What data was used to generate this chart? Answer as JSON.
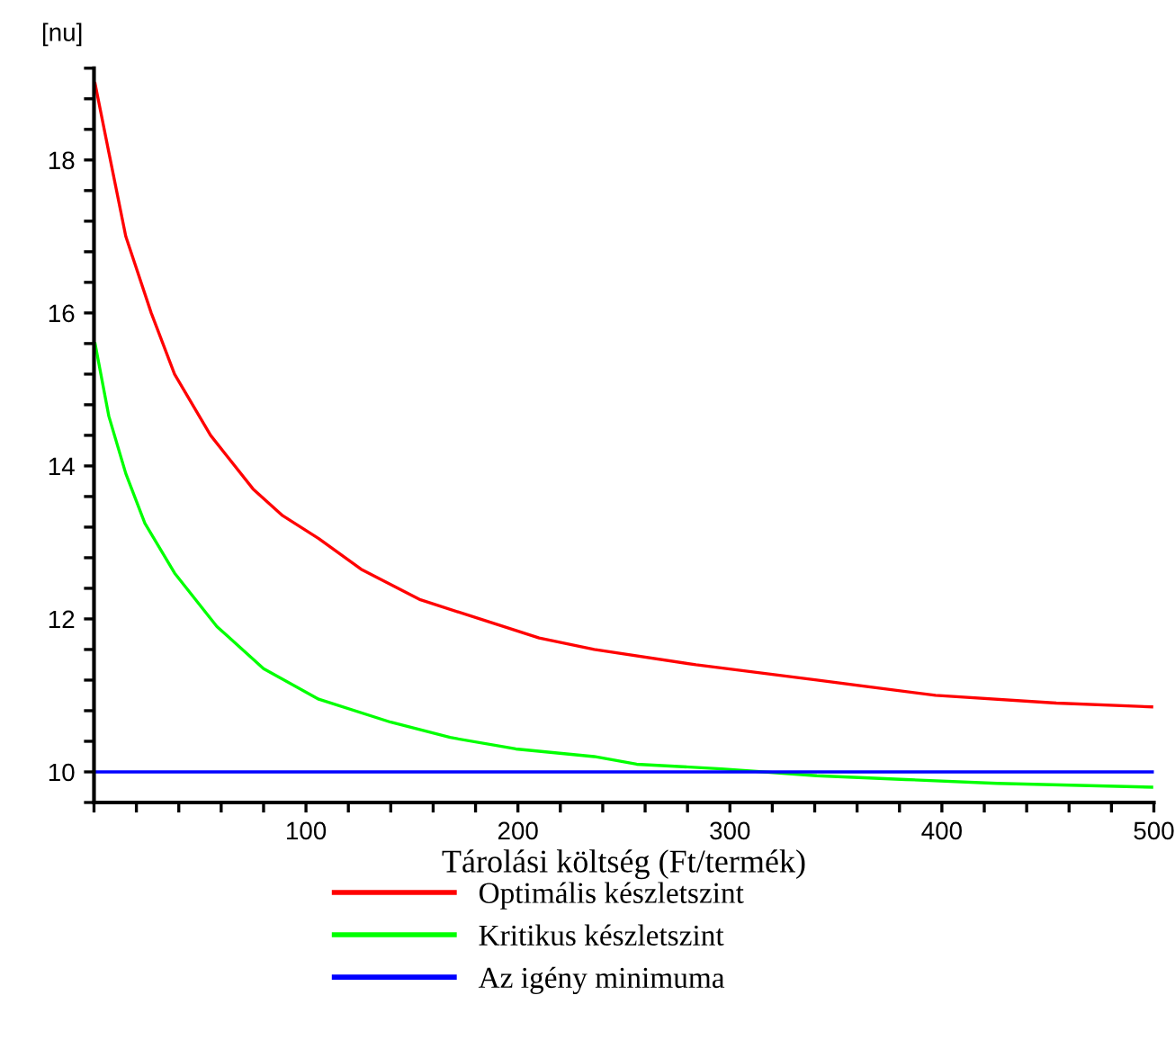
{
  "chart_data": {
    "type": "line",
    "xlabel": "Tárolási költség (Ft/termék)",
    "ylabel": "[nu]",
    "xlim": [
      0,
      500
    ],
    "ylim": [
      9.6,
      19.2
    ],
    "xticks": [
      {
        "value": 0,
        "label": null
      },
      {
        "value": 20,
        "label": null
      },
      {
        "value": 40,
        "label": null
      },
      {
        "value": 60,
        "label": null
      },
      {
        "value": 80,
        "label": null
      },
      100,
      {
        "value": 120,
        "label": null
      },
      {
        "value": 140,
        "label": null
      },
      {
        "value": 160,
        "label": null
      },
      {
        "value": 180,
        "label": null
      },
      200,
      {
        "value": 220,
        "label": null
      },
      {
        "value": 240,
        "label": null
      },
      {
        "value": 260,
        "label": null
      },
      {
        "value": 280,
        "label": null
      },
      300,
      {
        "value": 320,
        "label": null
      },
      {
        "value": 340,
        "label": null
      },
      {
        "value": 360,
        "label": null
      },
      {
        "value": 380,
        "label": null
      },
      400,
      {
        "value": 420,
        "label": null
      },
      {
        "value": 440,
        "label": null
      },
      {
        "value": 460,
        "label": null
      },
      {
        "value": 480,
        "label": null
      },
      500
    ],
    "yticks": [
      {
        "value": 9.6,
        "label": null
      },
      10,
      {
        "value": 10.4,
        "label": null
      },
      {
        "value": 10.8,
        "label": null
      },
      {
        "value": 11.2,
        "label": null
      },
      {
        "value": 11.6,
        "label": null
      },
      12,
      {
        "value": 12.4,
        "label": null
      },
      {
        "value": 12.8,
        "label": null
      },
      {
        "value": 13.2,
        "label": null
      },
      {
        "value": 13.6,
        "label": null
      },
      14,
      {
        "value": 14.4,
        "label": null
      },
      {
        "value": 14.8,
        "label": null
      },
      {
        "value": 15.2,
        "label": null
      },
      {
        "value": 15.6,
        "label": null
      },
      16,
      {
        "value": 16.4,
        "label": null
      },
      {
        "value": 16.8,
        "label": null
      },
      {
        "value": 17.2,
        "label": null
      },
      {
        "value": 17.6,
        "label": null
      },
      18,
      {
        "value": 18.4,
        "label": null
      },
      {
        "value": 18.8,
        "label": null
      },
      {
        "value": 19.2,
        "label": null
      }
    ],
    "grid": false,
    "legend": "bottom",
    "line_style": "solid",
    "marker": "none",
    "series": [
      {
        "name": "Optimális készletszint",
        "color": "#ff0000",
        "x": [
          0.5,
          7,
          15,
          27,
          38,
          55,
          75,
          89,
          106,
          126,
          154,
          182,
          210,
          236,
          284,
          341,
          397,
          454,
          499
        ],
        "values": [
          19.0,
          18.1,
          17.0,
          16.0,
          15.2,
          14.4,
          13.7,
          13.35,
          13.05,
          12.65,
          12.25,
          12.0,
          11.75,
          11.6,
          11.4,
          11.2,
          11.0,
          10.9,
          10.85
        ]
      },
      {
        "name": "Kritikus készletszint",
        "color": "#00ff00",
        "x": [
          0.5,
          7,
          15,
          24,
          38,
          58,
          80,
          106,
          140,
          168,
          199,
          236,
          256,
          296,
          341,
          383,
          426,
          499
        ],
        "values": [
          15.6,
          14.65,
          13.9,
          13.25,
          12.6,
          11.9,
          11.35,
          10.95,
          10.65,
          10.45,
          10.3,
          10.2,
          10.1,
          10.04,
          9.95,
          9.9,
          9.85,
          9.8
        ]
      },
      {
        "name": "Az igény minimuma",
        "color": "#0000ff",
        "x": [
          0,
          500
        ],
        "values": [
          10,
          10
        ]
      }
    ]
  }
}
